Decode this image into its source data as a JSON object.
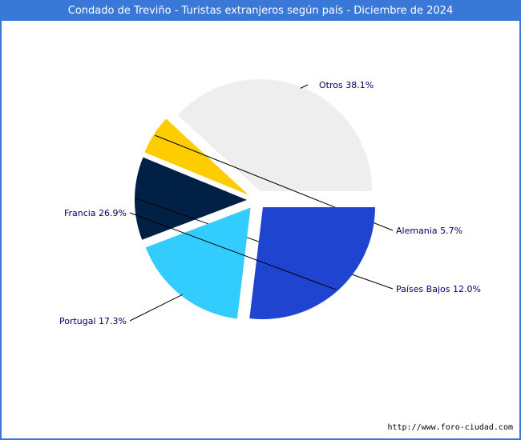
{
  "title": "Condado de Treviño - Turistas extranjeros según país - Diciembre de 2024",
  "footer_url": "http://www.foro-ciudad.com",
  "chart_data": {
    "type": "pie",
    "title": "Condado de Treviño - Turistas extranjeros según país - Diciembre de 2024",
    "exploded": true,
    "label_color": "#000066",
    "slices": [
      {
        "label": "Otros",
        "value": 38.1,
        "display": "Otros 38.1%",
        "color": "#eeeeee"
      },
      {
        "label": "Alemania",
        "value": 5.7,
        "display": "Alemania 5.7%",
        "color": "#ffcc00"
      },
      {
        "label": "Países Bajos",
        "value": 12.0,
        "display": "Países Bajos 12.0%",
        "color": "#002046"
      },
      {
        "label": "Portugal",
        "value": 17.3,
        "display": "Portugal 17.3%",
        "color": "#33ccff"
      },
      {
        "label": "Francia",
        "value": 26.9,
        "display": "Francia 26.9%",
        "color": "#1f44d0"
      }
    ]
  }
}
